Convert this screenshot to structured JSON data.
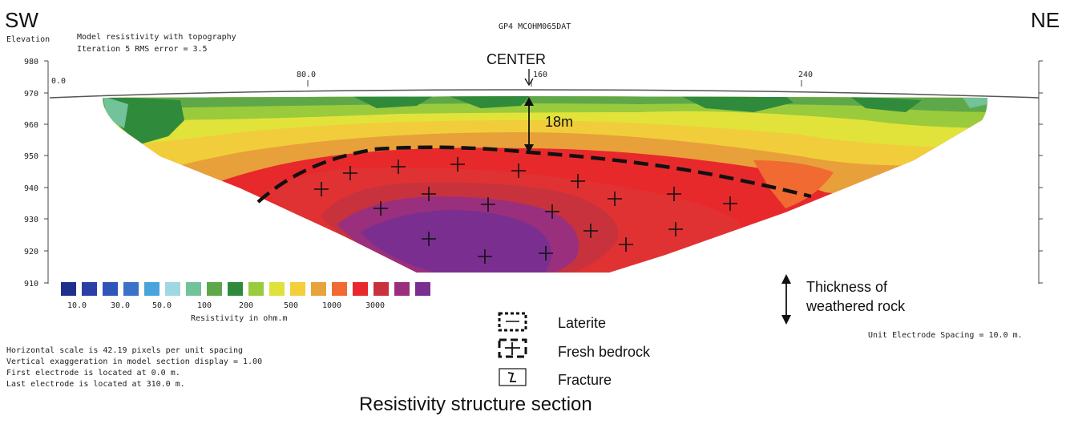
{
  "header": {
    "left_direction": "SW",
    "right_direction": "NE",
    "file_name": "GP4 MCOHM065DAT",
    "elevation_label": "Elevation",
    "model_title": "Model resistivity with topography",
    "iteration_text": "Iteration 5 RMS error = 3.5"
  },
  "axes": {
    "elevation_ticks": [
      "980",
      "970",
      "960",
      "950",
      "940",
      "930",
      "920",
      "910"
    ],
    "distance_ticks": [
      "0.0",
      "80.0",
      "160",
      "240"
    ]
  },
  "annotations": {
    "center_label": "CENTER",
    "depth_label": "18m"
  },
  "colorbar": {
    "swatch_colors": [
      "#1f2f8c",
      "#2b3fa6",
      "#2f55b8",
      "#3a73c8",
      "#4aa4dc",
      "#9fd8e0",
      "#72c29a",
      "#5fa84a",
      "#2f8a3c",
      "#9acb3c",
      "#dfe23a",
      "#f3cf3b",
      "#e7a33c",
      "#f06a31",
      "#e8282c",
      "#c8323c",
      "#9a2f7e",
      "#7a2f90"
    ],
    "tick_labels": [
      "10.0",
      "30.0",
      "50.0",
      "100",
      "200",
      "500",
      "1000",
      "3000"
    ],
    "title": "Resistivity in ohm.m"
  },
  "legend": {
    "thickness_label_1": "Thickness of",
    "thickness_label_2": "weathered rock",
    "laterite": "Laterite",
    "fresh_bedrock": "Fresh  bedrock",
    "fracture": "Fracture"
  },
  "footer": {
    "unit_spacing": "Unit Electrode Spacing = 10.0 m.",
    "horizontal_scale": "Horizontal scale is 42.19 pixels per unit spacing",
    "vertical_exaggeration": "Vertical exaggeration in model section display = 1.00",
    "first_electrode": "First electrode is located at 0.0  m.",
    "last_electrode": "Last electrode is located at 310.0 m.",
    "caption": "Resistivity structure section"
  }
}
